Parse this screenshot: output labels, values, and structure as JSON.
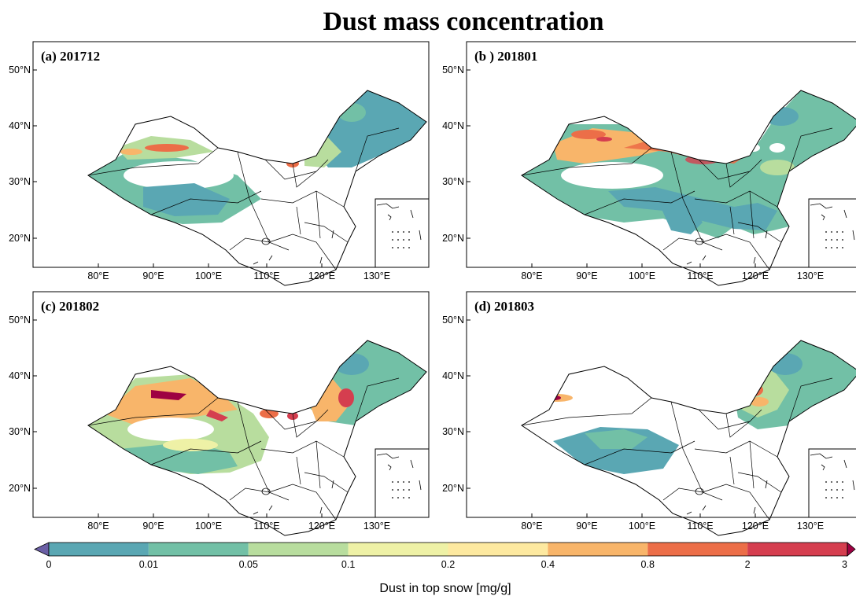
{
  "title": "Dust mass concentration",
  "panels": [
    {
      "label": "(a) 201712",
      "type": "a"
    },
    {
      "label": "(b ) 201801",
      "type": "b"
    },
    {
      "label": "(c) 201802",
      "type": "c"
    },
    {
      "label": "(d) 201803",
      "type": "d"
    }
  ],
  "lon_ticks": [
    "80°E",
    "90°E",
    "100°E",
    "110°E",
    "120°E",
    "130°E"
  ],
  "lat_ticks": [
    "50°N",
    "40°N",
    "30°N",
    "20°N"
  ],
  "colorbar": {
    "label": "Dust in top snow [mg/g]",
    "ticks": [
      "0",
      "0.01",
      "0.05",
      "0.1",
      "0.2",
      "0.4",
      "0.8",
      "2",
      "3"
    ],
    "colors": [
      "#5aa7b3",
      "#72c0a6",
      "#b8dd9e",
      "#eef1a6",
      "#fde9a0",
      "#f8b56a",
      "#ec6e48",
      "#d53e4f"
    ],
    "under_color": "#6b5fa5",
    "over_color": "#9e0142"
  }
}
